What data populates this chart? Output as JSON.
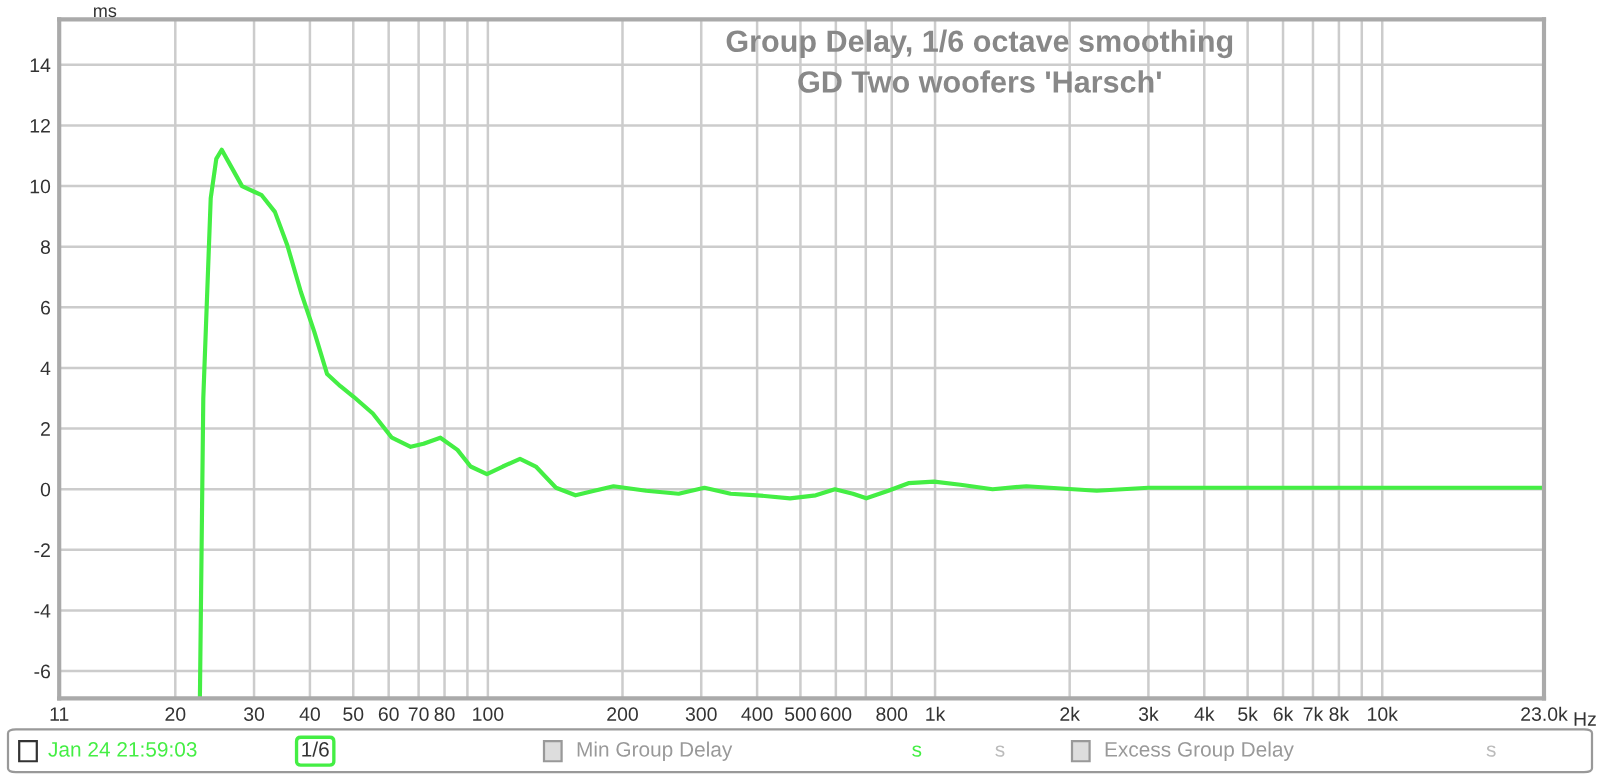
{
  "chart_data": {
    "type": "line",
    "title": "Group Delay, 1/6 octave smoothing",
    "subtitle": "GD Two woofers 'Harsch'",
    "ylabel": "ms",
    "xlabel": "Hz",
    "log": "x",
    "xlim": [
      11,
      23000
    ],
    "xticks": [
      11,
      20,
      30,
      40,
      50,
      60,
      70,
      80,
      {
        "value": 90,
        "label": null
      },
      100,
      200,
      300,
      400,
      500,
      600,
      {
        "value": 700,
        "label": null
      },
      800,
      {
        "value": 1000,
        "label": "1k"
      },
      {
        "value": 2000,
        "label": "2k"
      },
      {
        "value": 3000,
        "label": "3k"
      },
      {
        "value": 4000,
        "label": "4k"
      },
      {
        "value": 5000,
        "label": "5k"
      },
      {
        "value": 6000,
        "label": "6k"
      },
      {
        "value": 7000,
        "label": "7k"
      },
      {
        "value": 8000,
        "label": "8k"
      },
      {
        "value": 9000,
        "label": null
      },
      {
        "value": 10000,
        "label": "10k"
      },
      {
        "value": 23000,
        "label": "23.0k"
      }
    ],
    "ylim": [
      -6.9,
      15.5
    ],
    "yticks": [
      -6,
      -4,
      -2,
      0,
      2,
      4,
      6,
      8,
      10,
      12,
      14
    ],
    "grid": true,
    "legend": "bottom",
    "marker": "none",
    "line_style": "solid",
    "series": [
      {
        "name": "Jan 24 21:59:03",
        "color": "#44ee44",
        "x": [
          22.7,
          23.1,
          24.0,
          24.7,
          25.4,
          26.3,
          28.2,
          31.2,
          33.4,
          35.6,
          38.2,
          40.9,
          43.7,
          46.8,
          50.1,
          55.3,
          61.0,
          67.2,
          71.8,
          78.3,
          85.5,
          91.5,
          99.5,
          108,
          118,
          128,
          142,
          157,
          173,
          191,
          226,
          267,
          305,
          349,
          400,
          474,
          541,
          597,
          655,
          702,
          786,
          872,
          995,
          1140,
          1345,
          1600,
          2300,
          3000,
          5300,
          9800,
          23000
        ],
        "values": [
          -6.9,
          3.0,
          9.6,
          10.9,
          11.2,
          10.8,
          10.0,
          9.7,
          9.15,
          8.05,
          6.5,
          5.2,
          3.8,
          3.4,
          3.05,
          2.5,
          1.7,
          1.4,
          1.5,
          1.7,
          1.3,
          0.75,
          0.5,
          0.75,
          1.0,
          0.75,
          0.05,
          -0.2,
          -0.05,
          0.1,
          -0.05,
          -0.15,
          0.05,
          -0.15,
          -0.2,
          -0.3,
          -0.2,
          0.0,
          -0.15,
          -0.3,
          -0.05,
          0.2,
          0.25,
          0.15,
          0.0,
          0.1,
          -0.05,
          0.05,
          0.05,
          0.05,
          0.05
        ]
      }
    ],
    "annotations": [
      "1/6",
      "s",
      "Min Group Delay",
      "s",
      "Excess Group Delay",
      "s"
    ]
  }
}
